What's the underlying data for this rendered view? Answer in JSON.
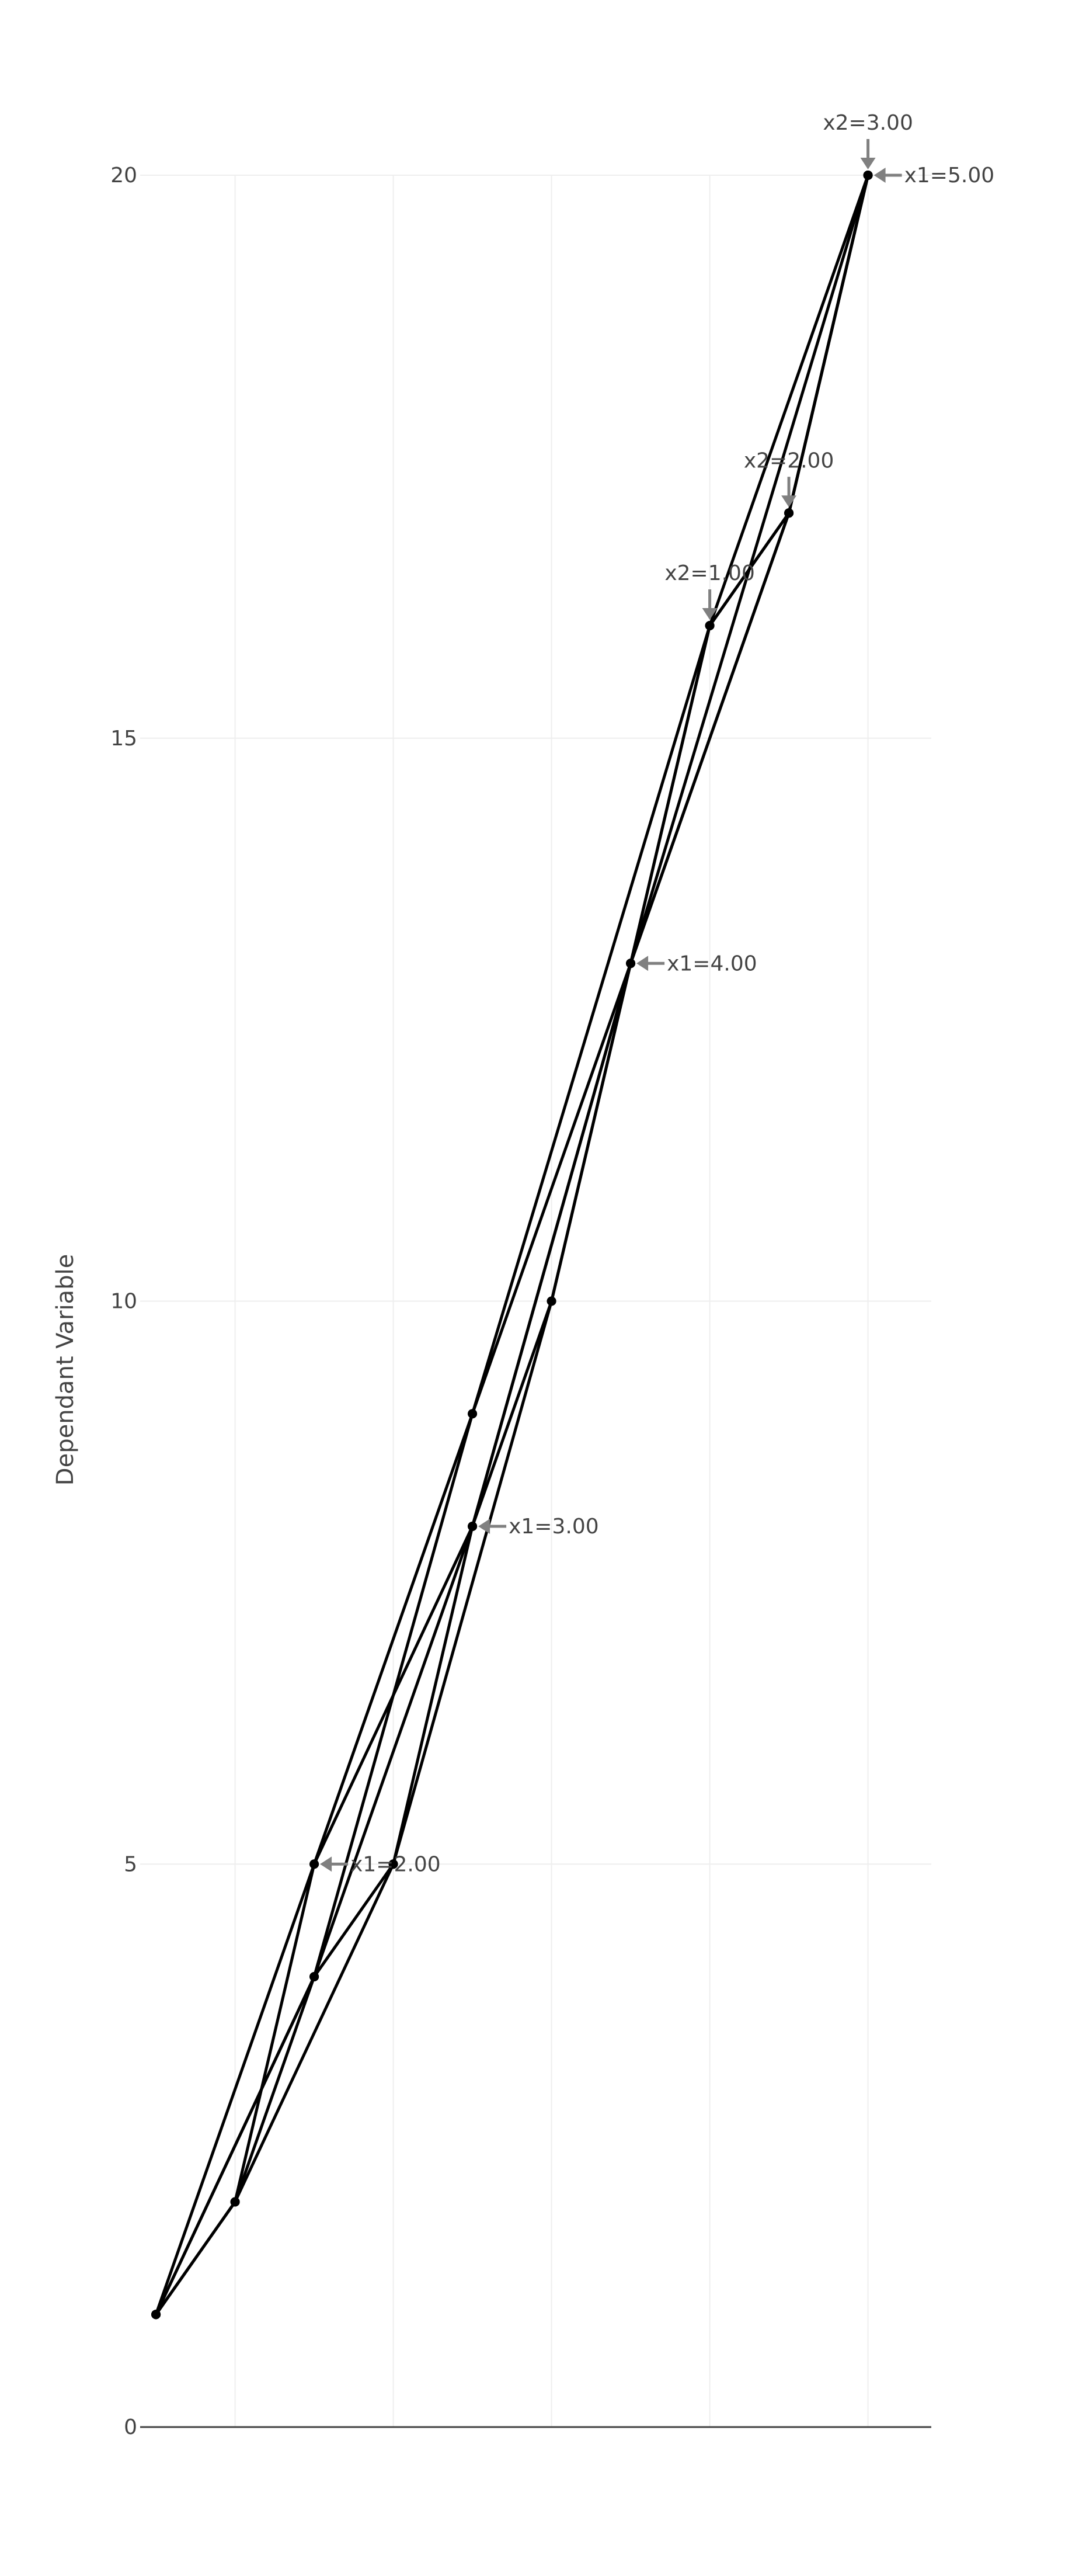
{
  "chart_data": {
    "type": "line",
    "title": "",
    "xlabel": "",
    "ylabel": "Dependant Variable",
    "xlim": [
      0.4,
      5.4
    ],
    "ylim": [
      0,
      20
    ],
    "grid": true,
    "x_ticks": [
      1,
      2,
      3,
      4,
      5
    ],
    "y_ticks": [
      0,
      5,
      10,
      15,
      20
    ],
    "y_tick_labels": [
      "0",
      "5",
      "10",
      "15",
      "20"
    ],
    "colors": {
      "line": "#000000",
      "grid": "#eeeeee",
      "zero_line": "#444444",
      "annotation_arrow": "#808080",
      "text": "#444444"
    },
    "series": [
      {
        "x": [
          0.5,
          1.5,
          2.5,
          3.5,
          4.5,
          5.0
        ],
        "values": [
          1,
          5,
          8,
          13,
          17,
          20
        ]
      },
      {
        "x": [
          1.0,
          2.0,
          3.0,
          3.5,
          5.0
        ],
        "values": [
          2,
          5,
          10,
          13,
          20
        ]
      },
      {
        "x": [
          0.5,
          1.0,
          1.5,
          2.5,
          4.0,
          4.5,
          5.0
        ],
        "values": [
          1,
          2,
          5,
          9,
          16,
          17,
          20
        ]
      },
      {
        "x": [
          0.5,
          1.5,
          2.0,
          2.5,
          3.5,
          4.0,
          5.0
        ],
        "values": [
          1,
          4,
          5,
          8,
          13,
          16,
          20
        ]
      },
      {
        "x": [
          0.5,
          1.0,
          1.5,
          2.5,
          3.5,
          4.5,
          5.0
        ],
        "values": [
          1,
          2,
          4,
          9,
          13,
          17,
          20
        ]
      },
      {
        "x": [
          0.5,
          1.5,
          2.5,
          3.0,
          4.0,
          4.5,
          5.0
        ],
        "values": [
          1,
          4,
          8,
          10,
          16,
          17,
          20
        ]
      }
    ],
    "annotations": [
      {
        "text": "x1=2.00",
        "x": 1.5,
        "y": 5,
        "arrow": "right"
      },
      {
        "text": "x1=3.00",
        "x": 2.5,
        "y": 8,
        "arrow": "right"
      },
      {
        "text": "x1=4.00",
        "x": 3.5,
        "y": 13,
        "arrow": "right"
      },
      {
        "text": "x1=5.00",
        "x": 5.0,
        "y": 20,
        "arrow": "right"
      },
      {
        "text": "x2=1.00",
        "x": 4.0,
        "y": 16,
        "arrow": "top"
      },
      {
        "text": "x2=2.00",
        "x": 4.5,
        "y": 17,
        "arrow": "top"
      },
      {
        "text": "x2=3.00",
        "x": 5.0,
        "y": 20,
        "arrow": "top"
      }
    ]
  }
}
